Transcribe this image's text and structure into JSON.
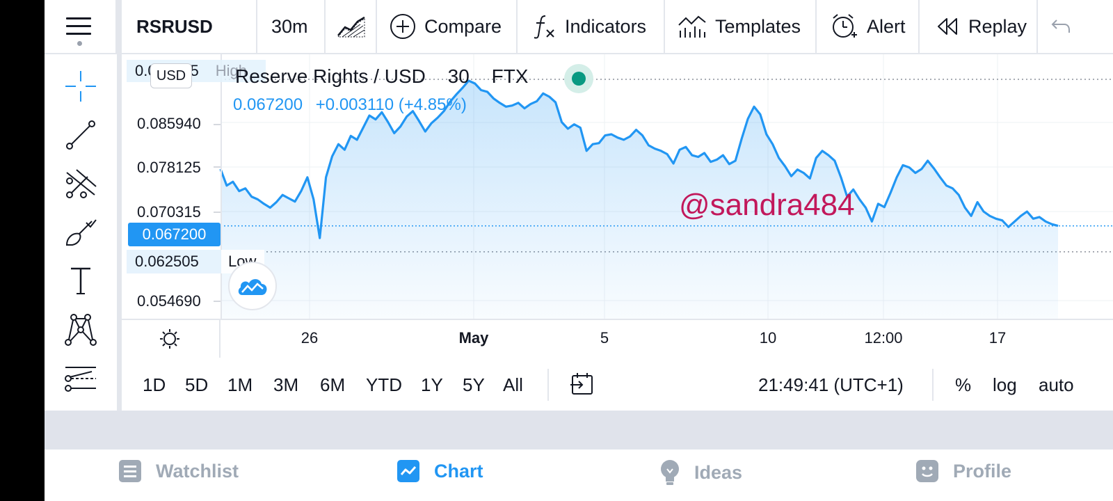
{
  "toolbar": {
    "symbol": "RSRUSD",
    "interval": "30m",
    "compare": "Compare",
    "indicators": "Indicators",
    "templates": "Templates",
    "alert": "Alert",
    "replay": "Replay"
  },
  "legend": {
    "pair": "Reserve Rights / USD",
    "interval": "30",
    "exchange": "FTX",
    "last": "0.067200",
    "change": "+0.003110 (+4.85%)"
  },
  "price_scale": {
    "currency": "USD",
    "high_value": "0.093755",
    "high_label": "High",
    "low_value": "0.062505",
    "low_label": "Low",
    "current": "0.067200",
    "levels": [
      "0.085940",
      "0.078125",
      "0.070315",
      "0.054690"
    ]
  },
  "watermark": "@sandra484",
  "time_axis": [
    "26",
    "May",
    "5",
    "10",
    "12:00",
    "17"
  ],
  "range_bar": {
    "ranges": [
      "1D",
      "5D",
      "1M",
      "3M",
      "6M",
      "YTD",
      "1Y",
      "5Y",
      "All"
    ],
    "clock": "21:49:41 (UTC+1)",
    "percent": "%",
    "log": "log",
    "auto": "auto"
  },
  "bottom_nav": {
    "watchlist": "Watchlist",
    "chart": "Chart",
    "ideas": "Ideas",
    "profile": "Profile"
  },
  "colors": {
    "accent": "#2196f3",
    "watermark": "#c2185b",
    "live": "#089981"
  },
  "chart_data": {
    "type": "area",
    "symbol": "RSRUSD",
    "x_labels": [
      "26",
      "May",
      "5",
      "10",
      "12:00",
      "17"
    ],
    "ylim": [
      0.05,
      0.095
    ],
    "high": 0.093755,
    "low": 0.062505,
    "last": 0.0672,
    "values": [
      0.0775,
      0.0745,
      0.0752,
      0.0735,
      0.074,
      0.0725,
      0.072,
      0.0712,
      0.0705,
      0.0715,
      0.0728,
      0.0722,
      0.0716,
      0.0735,
      0.076,
      0.072,
      0.065,
      0.076,
      0.0798,
      0.082,
      0.081,
      0.0835,
      0.0828,
      0.085,
      0.0872,
      0.0865,
      0.0878,
      0.086,
      0.084,
      0.0852,
      0.087,
      0.088,
      0.0862,
      0.0843,
      0.0858,
      0.0868,
      0.088,
      0.0897,
      0.091,
      0.0922,
      0.0935,
      0.093,
      0.0918,
      0.0915,
      0.0903,
      0.0895,
      0.0888,
      0.089,
      0.0895,
      0.0885,
      0.0893,
      0.0898,
      0.0912,
      0.0906,
      0.0896,
      0.086,
      0.0848,
      0.0856,
      0.085,
      0.0808,
      0.082,
      0.0822,
      0.0836,
      0.0838,
      0.0832,
      0.0828,
      0.0834,
      0.0846,
      0.0836,
      0.0818,
      0.0812,
      0.0808,
      0.0802,
      0.0785,
      0.081,
      0.0815,
      0.08,
      0.0797,
      0.0804,
      0.0788,
      0.0792,
      0.08,
      0.0784,
      0.079,
      0.083,
      0.0866,
      0.0888,
      0.0874,
      0.0838,
      0.082,
      0.0795,
      0.078,
      0.0762,
      0.0774,
      0.0768,
      0.0758,
      0.0795,
      0.0808,
      0.08,
      0.079,
      0.076,
      0.0725,
      0.0738,
      0.072,
      0.0705,
      0.068,
      0.0712,
      0.0706,
      0.0732,
      0.076,
      0.0782,
      0.0778,
      0.0768,
      0.0775,
      0.079,
      0.0776,
      0.076,
      0.0745,
      0.074,
      0.0728,
      0.0705,
      0.069,
      0.0715,
      0.0698,
      0.069,
      0.0685,
      0.0682,
      0.067,
      0.068,
      0.069,
      0.0698,
      0.0685,
      0.0688,
      0.068,
      0.0675,
      0.0672
    ],
    "grid": true
  }
}
